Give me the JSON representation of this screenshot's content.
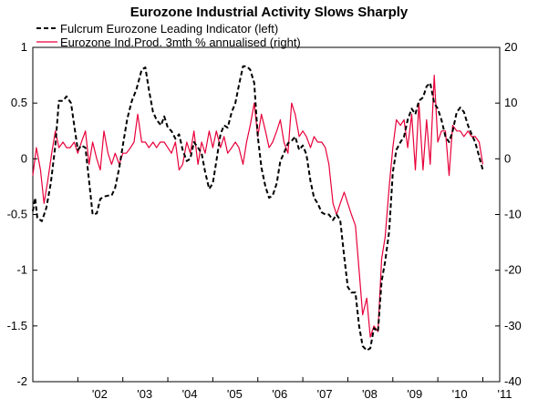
{
  "chart_data": {
    "type": "line",
    "title": "Eurozone Industrial Activity Slows Sharply",
    "xlabel": "",
    "ylabel_left": "",
    "ylabel_right": "",
    "x_domain": [
      2001.0,
      2011.375
    ],
    "x_ticks": [
      {
        "x": 2002.0,
        "label": "'02"
      },
      {
        "x": 2003.0,
        "label": "'03"
      },
      {
        "x": 2004.0,
        "label": "'04"
      },
      {
        "x": 2005.0,
        "label": "'05"
      },
      {
        "x": 2006.0,
        "label": "'06"
      },
      {
        "x": 2007.0,
        "label": "'07"
      },
      {
        "x": 2008.0,
        "label": "'08"
      },
      {
        "x": 2009.0,
        "label": "'09"
      },
      {
        "x": 2010.0,
        "label": "'10"
      },
      {
        "x": 2011.0,
        "label": "'11"
      }
    ],
    "ylim_left": [
      -2,
      1
    ],
    "yticks_left": [
      {
        "v": 1,
        "label": "1"
      },
      {
        "v": 0.5,
        "label": "0.5"
      },
      {
        "v": 0,
        "label": "0"
      },
      {
        "v": -0.5,
        "label": "-0.5"
      },
      {
        "v": -1,
        "label": "-1"
      },
      {
        "v": -1.5,
        "label": "-1.5"
      },
      {
        "v": -2,
        "label": "-2"
      }
    ],
    "ylim_right": [
      -40,
      20
    ],
    "yticks_right": [
      {
        "v": 20,
        "label": "20"
      },
      {
        "v": 10,
        "label": "10"
      },
      {
        "v": 0,
        "label": "0"
      },
      {
        "v": -10,
        "label": "-10"
      },
      {
        "v": -20,
        "label": "-20"
      },
      {
        "v": -30,
        "label": "-30"
      },
      {
        "v": -40,
        "label": "-40"
      }
    ],
    "grid": false,
    "legend_position": "top-left",
    "series": [
      {
        "name": "Fulcrum Eurozone Leading Indicator (left)",
        "axis": "left",
        "color": "#000000",
        "style": "dashed",
        "points": [
          [
            2001.0,
            -0.47
          ],
          [
            2001.05,
            -0.35
          ],
          [
            2001.1,
            -0.53
          ],
          [
            2001.2,
            -0.56
          ],
          [
            2001.3,
            -0.44
          ],
          [
            2001.4,
            -0.22
          ],
          [
            2001.5,
            0.12
          ],
          [
            2001.58,
            0.52
          ],
          [
            2001.67,
            0.52
          ],
          [
            2001.75,
            0.56
          ],
          [
            2001.85,
            0.5
          ],
          [
            2001.92,
            0.3
          ],
          [
            2002.0,
            0.08
          ],
          [
            2002.08,
            0.12
          ],
          [
            2002.17,
            0.1
          ],
          [
            2002.25,
            -0.2
          ],
          [
            2002.33,
            -0.5
          ],
          [
            2002.42,
            -0.49
          ],
          [
            2002.5,
            -0.36
          ],
          [
            2002.58,
            -0.34
          ],
          [
            2002.67,
            -0.33
          ],
          [
            2002.75,
            -0.33
          ],
          [
            2002.83,
            -0.26
          ],
          [
            2002.92,
            -0.08
          ],
          [
            2003.0,
            0.12
          ],
          [
            2003.1,
            0.36
          ],
          [
            2003.2,
            0.52
          ],
          [
            2003.3,
            0.62
          ],
          [
            2003.42,
            0.8
          ],
          [
            2003.5,
            0.82
          ],
          [
            2003.58,
            0.62
          ],
          [
            2003.67,
            0.42
          ],
          [
            2003.75,
            0.35
          ],
          [
            2003.85,
            0.3
          ],
          [
            2003.92,
            0.38
          ],
          [
            2004.0,
            0.28
          ],
          [
            2004.08,
            0.25
          ],
          [
            2004.17,
            0.18
          ],
          [
            2004.25,
            0.22
          ],
          [
            2004.33,
            0.08
          ],
          [
            2004.42,
            -0.02
          ],
          [
            2004.5,
            0.0
          ],
          [
            2004.58,
            0.15
          ],
          [
            2004.67,
            0.1
          ],
          [
            2004.75,
            0.05
          ],
          [
            2004.83,
            -0.12
          ],
          [
            2004.92,
            -0.27
          ],
          [
            2005.0,
            -0.22
          ],
          [
            2005.08,
            -0.02
          ],
          [
            2005.17,
            0.22
          ],
          [
            2005.25,
            0.3
          ],
          [
            2005.33,
            0.28
          ],
          [
            2005.42,
            0.42
          ],
          [
            2005.5,
            0.5
          ],
          [
            2005.58,
            0.66
          ],
          [
            2005.67,
            0.83
          ],
          [
            2005.75,
            0.83
          ],
          [
            2005.83,
            0.8
          ],
          [
            2005.92,
            0.68
          ],
          [
            2006.0,
            0.2
          ],
          [
            2006.08,
            -0.08
          ],
          [
            2006.17,
            -0.25
          ],
          [
            2006.25,
            -0.35
          ],
          [
            2006.33,
            -0.33
          ],
          [
            2006.42,
            -0.22
          ],
          [
            2006.5,
            -0.02
          ],
          [
            2006.58,
            0.05
          ],
          [
            2006.67,
            0.14
          ],
          [
            2006.75,
            0.16
          ],
          [
            2006.83,
            0.2
          ],
          [
            2006.92,
            0.08
          ],
          [
            2007.0,
            0.12
          ],
          [
            2007.08,
            0.04
          ],
          [
            2007.17,
            -0.2
          ],
          [
            2007.25,
            -0.35
          ],
          [
            2007.33,
            -0.4
          ],
          [
            2007.42,
            -0.48
          ],
          [
            2007.5,
            -0.5
          ],
          [
            2007.58,
            -0.5
          ],
          [
            2007.67,
            -0.55
          ],
          [
            2007.75,
            -0.5
          ],
          [
            2007.83,
            -0.55
          ],
          [
            2007.92,
            -0.88
          ],
          [
            2008.0,
            -1.15
          ],
          [
            2008.08,
            -1.2
          ],
          [
            2008.17,
            -1.2
          ],
          [
            2008.25,
            -1.5
          ],
          [
            2008.33,
            -1.68
          ],
          [
            2008.42,
            -1.72
          ],
          [
            2008.5,
            -1.7
          ],
          [
            2008.58,
            -1.52
          ],
          [
            2008.67,
            -1.55
          ],
          [
            2008.75,
            -1.1
          ],
          [
            2008.83,
            -0.92
          ],
          [
            2008.92,
            -0.65
          ],
          [
            2009.0,
            -0.12
          ],
          [
            2009.08,
            0.08
          ],
          [
            2009.17,
            0.15
          ],
          [
            2009.25,
            0.2
          ],
          [
            2009.33,
            0.35
          ],
          [
            2009.42,
            0.45
          ],
          [
            2009.5,
            0.4
          ],
          [
            2009.58,
            0.52
          ],
          [
            2009.67,
            0.55
          ],
          [
            2009.75,
            0.65
          ],
          [
            2009.83,
            0.68
          ],
          [
            2009.92,
            0.5
          ],
          [
            2010.0,
            0.45
          ],
          [
            2010.08,
            0.35
          ],
          [
            2010.17,
            0.2
          ],
          [
            2010.25,
            0.15
          ],
          [
            2010.33,
            0.25
          ],
          [
            2010.42,
            0.42
          ],
          [
            2010.5,
            0.46
          ],
          [
            2010.58,
            0.42
          ],
          [
            2010.67,
            0.3
          ],
          [
            2010.75,
            0.22
          ],
          [
            2010.83,
            0.15
          ],
          [
            2010.92,
            0.02
          ],
          [
            2011.0,
            -0.1
          ]
        ]
      },
      {
        "name": "Eurozone Ind.Prod. 3mth % annualised (right)",
        "axis": "right",
        "color": "#e8003a",
        "style": "solid",
        "points": [
          [
            2001.0,
            -3
          ],
          [
            2001.08,
            2
          ],
          [
            2001.17,
            -2
          ],
          [
            2001.25,
            -8
          ],
          [
            2001.33,
            -4
          ],
          [
            2001.42,
            1
          ],
          [
            2001.5,
            5
          ],
          [
            2001.58,
            2
          ],
          [
            2001.67,
            3
          ],
          [
            2001.75,
            2
          ],
          [
            2001.83,
            2
          ],
          [
            2001.92,
            3
          ],
          [
            2002.0,
            1
          ],
          [
            2002.08,
            3
          ],
          [
            2002.17,
            5
          ],
          [
            2002.25,
            -1
          ],
          [
            2002.33,
            3
          ],
          [
            2002.42,
            0
          ],
          [
            2002.5,
            -2
          ],
          [
            2002.58,
            5
          ],
          [
            2002.67,
            1
          ],
          [
            2002.75,
            -1
          ],
          [
            2002.83,
            1
          ],
          [
            2002.92,
            -1
          ],
          [
            2003.0,
            1
          ],
          [
            2003.08,
            1
          ],
          [
            2003.17,
            2
          ],
          [
            2003.25,
            3
          ],
          [
            2003.33,
            8
          ],
          [
            2003.42,
            3
          ],
          [
            2003.5,
            3
          ],
          [
            2003.58,
            2
          ],
          [
            2003.67,
            3
          ],
          [
            2003.75,
            2
          ],
          [
            2003.83,
            3
          ],
          [
            2003.92,
            3
          ],
          [
            2004.0,
            2
          ],
          [
            2004.08,
            1
          ],
          [
            2004.17,
            3
          ],
          [
            2004.25,
            -2
          ],
          [
            2004.33,
            -1
          ],
          [
            2004.42,
            3
          ],
          [
            2004.5,
            1
          ],
          [
            2004.58,
            5
          ],
          [
            2004.67,
            -1
          ],
          [
            2004.75,
            3
          ],
          [
            2004.83,
            1
          ],
          [
            2004.92,
            5
          ],
          [
            2005.0,
            2
          ],
          [
            2005.08,
            5
          ],
          [
            2005.17,
            2
          ],
          [
            2005.25,
            4
          ],
          [
            2005.33,
            1
          ],
          [
            2005.42,
            2
          ],
          [
            2005.5,
            3
          ],
          [
            2005.58,
            2
          ],
          [
            2005.67,
            -1
          ],
          [
            2005.75,
            3
          ],
          [
            2005.83,
            6
          ],
          [
            2005.92,
            10
          ],
          [
            2006.0,
            4
          ],
          [
            2006.08,
            8
          ],
          [
            2006.17,
            5
          ],
          [
            2006.25,
            2
          ],
          [
            2006.33,
            3
          ],
          [
            2006.42,
            5
          ],
          [
            2006.5,
            7
          ],
          [
            2006.58,
            3
          ],
          [
            2006.67,
            1
          ],
          [
            2006.75,
            10
          ],
          [
            2006.83,
            8
          ],
          [
            2006.92,
            4
          ],
          [
            2007.0,
            5
          ],
          [
            2007.08,
            4
          ],
          [
            2007.17,
            2
          ],
          [
            2007.25,
            4
          ],
          [
            2007.33,
            3
          ],
          [
            2007.42,
            3
          ],
          [
            2007.5,
            2
          ],
          [
            2007.58,
            -1
          ],
          [
            2007.67,
            -8
          ],
          [
            2007.75,
            -10
          ],
          [
            2007.83,
            -8
          ],
          [
            2007.92,
            -6
          ],
          [
            2008.0,
            -8
          ],
          [
            2008.08,
            -10
          ],
          [
            2008.17,
            -12
          ],
          [
            2008.25,
            -20
          ],
          [
            2008.33,
            -28
          ],
          [
            2008.42,
            -25
          ],
          [
            2008.5,
            -32
          ],
          [
            2008.58,
            -30
          ],
          [
            2008.67,
            -31
          ],
          [
            2008.75,
            -18
          ],
          [
            2008.83,
            -14
          ],
          [
            2008.92,
            -5
          ],
          [
            2009.0,
            2
          ],
          [
            2009.08,
            7
          ],
          [
            2009.17,
            6
          ],
          [
            2009.25,
            7
          ],
          [
            2009.33,
            2
          ],
          [
            2009.42,
            8
          ],
          [
            2009.5,
            -2
          ],
          [
            2009.58,
            10
          ],
          [
            2009.67,
            -2
          ],
          [
            2009.75,
            7
          ],
          [
            2009.83,
            -1
          ],
          [
            2009.92,
            15
          ],
          [
            2010.0,
            3
          ],
          [
            2010.08,
            5
          ],
          [
            2010.17,
            5
          ],
          [
            2010.25,
            -3
          ],
          [
            2010.33,
            6
          ],
          [
            2010.42,
            5
          ],
          [
            2010.5,
            5
          ],
          [
            2010.58,
            4
          ],
          [
            2010.67,
            5
          ],
          [
            2010.75,
            4
          ],
          [
            2010.83,
            4
          ],
          [
            2010.92,
            3
          ],
          [
            2011.0,
            -1
          ]
        ]
      }
    ]
  }
}
